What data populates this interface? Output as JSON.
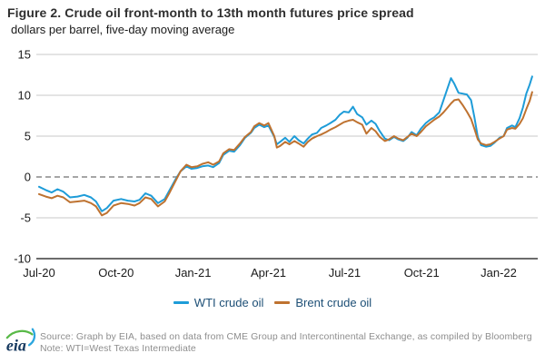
{
  "header": {
    "title": "Figure 2. Crude oil front-month to 13th month futures price spread",
    "subtitle": "dollars per barrel, five-day moving average"
  },
  "chart_data": {
    "type": "line",
    "title": "Crude oil front-month to 13th month futures price spread",
    "ylabel": "dollars per barrel, five-day moving average",
    "ylim": [
      -10,
      15
    ],
    "y_ticks": [
      15,
      10,
      5,
      0,
      -5,
      -10
    ],
    "x_ticks": [
      {
        "label": "Jul-20",
        "date": "2020-07-01"
      },
      {
        "label": "Oct-20",
        "date": "2020-10-01"
      },
      {
        "label": "Jan-21",
        "date": "2021-01-01"
      },
      {
        "label": "Apr-21",
        "date": "2021-04-01"
      },
      {
        "label": "Jul-21",
        "date": "2021-07-01"
      },
      {
        "label": "Oct-21",
        "date": "2021-10-01"
      },
      {
        "label": "Jan-22",
        "date": "2022-01-01"
      }
    ],
    "x_start_date": "2020-07-01",
    "grid": true,
    "zero_line": "dashed",
    "legend_position": "bottom",
    "x": [
      "2020-07-01",
      "2020-07-09",
      "2020-07-16",
      "2020-07-23",
      "2020-07-30",
      "2020-08-07",
      "2020-08-16",
      "2020-08-24",
      "2020-09-01",
      "2020-09-07",
      "2020-09-14",
      "2020-09-20",
      "2020-09-28",
      "2020-10-07",
      "2020-10-15",
      "2020-10-23",
      "2020-10-29",
      "2020-11-05",
      "2020-11-12",
      "2020-11-20",
      "2020-11-28",
      "2020-12-04",
      "2020-12-11",
      "2020-12-17",
      "2020-12-24",
      "2020-12-30",
      "2021-01-06",
      "2021-01-12",
      "2021-01-19",
      "2021-01-25",
      "2021-02-01",
      "2021-02-06",
      "2021-02-13",
      "2021-02-19",
      "2021-02-26",
      "2021-03-04",
      "2021-03-11",
      "2021-03-15",
      "2021-03-21",
      "2021-03-27",
      "2021-04-01",
      "2021-04-08",
      "2021-04-11",
      "2021-04-15",
      "2021-04-21",
      "2021-04-26",
      "2021-05-02",
      "2021-05-07",
      "2021-05-13",
      "2021-05-18",
      "2021-05-23",
      "2021-05-29",
      "2021-06-03",
      "2021-06-09",
      "2021-06-14",
      "2021-06-20",
      "2021-06-25",
      "2021-06-30",
      "2021-07-06",
      "2021-07-11",
      "2021-07-16",
      "2021-07-22",
      "2021-07-27",
      "2021-08-02",
      "2021-08-07",
      "2021-08-12",
      "2021-08-18",
      "2021-08-23",
      "2021-08-29",
      "2021-09-03",
      "2021-09-09",
      "2021-09-14",
      "2021-09-19",
      "2021-09-25",
      "2021-09-30",
      "2021-10-06",
      "2021-10-11",
      "2021-10-16",
      "2021-10-22",
      "2021-10-27",
      "2021-11-01",
      "2021-11-05",
      "2021-11-09",
      "2021-11-14",
      "2021-11-19",
      "2021-11-24",
      "2021-11-29",
      "2021-12-03",
      "2021-12-07",
      "2021-12-11",
      "2021-12-17",
      "2021-12-22",
      "2021-12-27",
      "2022-01-02",
      "2022-01-07",
      "2022-01-11",
      "2022-01-17",
      "2022-01-21",
      "2022-01-26",
      "2022-01-30",
      "2022-02-03",
      "2022-02-07",
      "2022-02-10"
    ],
    "series": [
      {
        "name": "WTI crude oil",
        "color": "#1E9CD8",
        "values": [
          -1.2,
          -1.6,
          -1.9,
          -1.5,
          -1.8,
          -2.5,
          -2.4,
          -2.2,
          -2.5,
          -3.0,
          -4.2,
          -3.8,
          -2.9,
          -2.7,
          -2.9,
          -3.0,
          -2.8,
          -2.0,
          -2.3,
          -3.2,
          -2.7,
          -1.6,
          -0.3,
          0.7,
          1.3,
          1.0,
          1.1,
          1.3,
          1.4,
          1.2,
          1.7,
          2.7,
          3.2,
          3.1,
          3.9,
          4.8,
          5.4,
          6.0,
          6.4,
          6.1,
          6.3,
          4.9,
          4.0,
          4.3,
          4.8,
          4.3,
          5.0,
          4.5,
          4.1,
          4.7,
          5.2,
          5.4,
          6.0,
          6.3,
          6.6,
          7.0,
          7.6,
          8.0,
          7.9,
          8.6,
          7.7,
          7.3,
          6.4,
          6.9,
          6.5,
          5.6,
          4.7,
          4.5,
          4.9,
          4.6,
          4.4,
          4.8,
          5.5,
          5.1,
          5.9,
          6.6,
          7.0,
          7.3,
          7.9,
          9.4,
          10.9,
          12.1,
          11.4,
          10.3,
          10.2,
          10.1,
          9.4,
          7.3,
          4.9,
          3.9,
          3.7,
          3.8,
          4.2,
          4.8,
          5.0,
          6.0,
          6.3,
          6.1,
          7.2,
          8.5,
          10.2,
          11.3,
          12.3
        ]
      },
      {
        "name": "Brent crude oil",
        "color": "#BE7230",
        "values": [
          -2.1,
          -2.4,
          -2.6,
          -2.3,
          -2.5,
          -3.1,
          -3.0,
          -2.9,
          -3.2,
          -3.6,
          -4.7,
          -4.4,
          -3.5,
          -3.2,
          -3.3,
          -3.5,
          -3.2,
          -2.5,
          -2.7,
          -3.6,
          -3.0,
          -1.9,
          -0.5,
          0.7,
          1.5,
          1.2,
          1.3,
          1.6,
          1.8,
          1.5,
          1.9,
          2.9,
          3.4,
          3.3,
          4.1,
          4.9,
          5.5,
          6.2,
          6.6,
          6.3,
          6.6,
          5.0,
          3.6,
          3.8,
          4.3,
          4.0,
          4.4,
          4.1,
          3.7,
          4.3,
          4.7,
          5.0,
          5.2,
          5.5,
          5.8,
          6.1,
          6.4,
          6.7,
          6.9,
          7.0,
          6.7,
          6.4,
          5.3,
          6.0,
          5.6,
          4.9,
          4.4,
          4.6,
          5.0,
          4.7,
          4.5,
          4.9,
          5.3,
          5.0,
          5.5,
          6.2,
          6.6,
          7.0,
          7.4,
          7.9,
          8.5,
          9.0,
          9.4,
          9.5,
          8.8,
          8.0,
          7.1,
          5.9,
          4.6,
          4.1,
          3.9,
          4.0,
          4.3,
          4.7,
          5.0,
          5.8,
          6.0,
          5.9,
          6.5,
          7.2,
          8.3,
          9.3,
          10.4
        ]
      }
    ]
  },
  "legend": {
    "items": [
      {
        "label": "WTI crude oil",
        "color": "#1E9CD8"
      },
      {
        "label": "Brent crude oil",
        "color": "#BE7230"
      }
    ],
    "text_color": "#1d4f76"
  },
  "footer": {
    "logo_text": "eia",
    "source_line": "Source: Graph by EIA, based on data from CME Group and Intercontinental Exchange, as compiled by Bloomberg",
    "note_line": "Note: WTI=West Texas Intermediate"
  },
  "colors": {
    "wti_line": "#1E9CD8",
    "brent_line": "#BE7230",
    "gridline": "#c9c9c9",
    "zero_line": "#a6a6a6",
    "axis_line": "#3a3a3a",
    "logo_navy": "#16395F",
    "logo_green": "#58B947",
    "logo_blue": "#2BA6DE",
    "background": "#ffffff"
  }
}
